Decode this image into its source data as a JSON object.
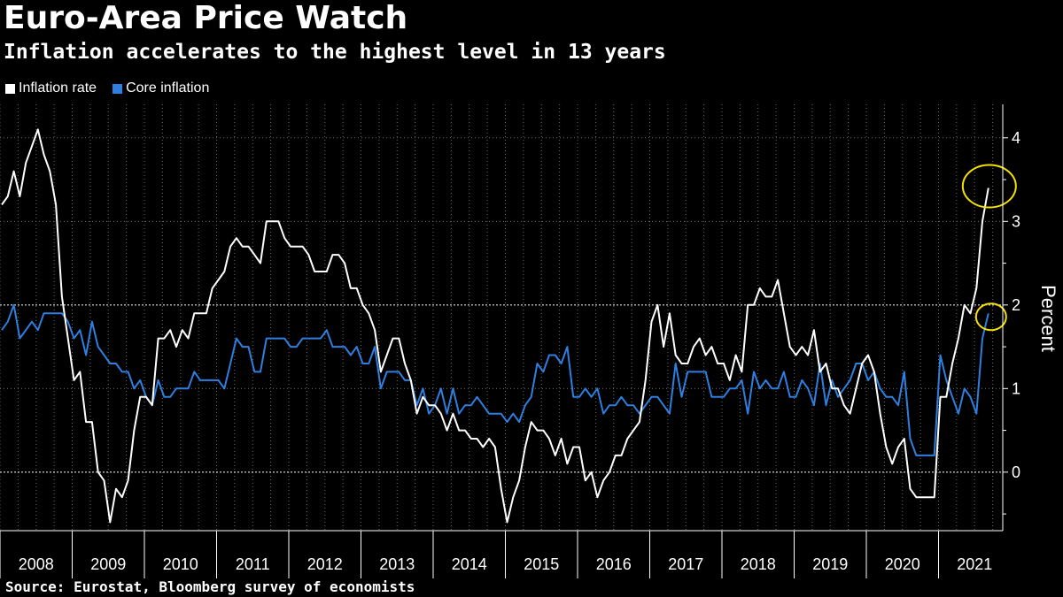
{
  "title": "Euro-Area Price Watch",
  "subtitle": "Inflation accelerates to the highest level in 13 years",
  "source": "Source: Eurostat, Bloomberg survey of economists",
  "colors": {
    "background": "#000000",
    "inflation": "#ffffff",
    "core": "#2f7fe0",
    "highlight": "#f5e100",
    "grid": "#6b6b6b"
  },
  "chart_data": {
    "type": "line",
    "title": "Euro-Area Price Watch",
    "subtitle": "Inflation accelerates to the highest level in 13 years",
    "xlabel": "",
    "ylabel": "Percent",
    "ylim": [
      -0.7,
      4.4
    ],
    "xlim": [
      "2008-01",
      "2021-11"
    ],
    "yticks": [
      0,
      1,
      2,
      3,
      4
    ],
    "year_labels": [
      "2008",
      "2009",
      "2010",
      "2011",
      "2012",
      "2013",
      "2014",
      "2015",
      "2016",
      "2017",
      "2018",
      "2019",
      "2020",
      "2021"
    ],
    "grid": true,
    "legend": "top-left",
    "start_month": "2008-01",
    "frequency": "monthly",
    "series": [
      {
        "name": "Inflation rate",
        "values": [
          3.2,
          3.3,
          3.6,
          3.3,
          3.7,
          3.9,
          4.1,
          3.8,
          3.6,
          3.2,
          2.1,
          1.6,
          1.1,
          1.2,
          0.6,
          0.6,
          0.0,
          -0.1,
          -0.6,
          -0.2,
          -0.3,
          -0.1,
          0.5,
          0.9,
          0.9,
          0.8,
          1.6,
          1.6,
          1.7,
          1.5,
          1.7,
          1.6,
          1.9,
          1.9,
          1.9,
          2.2,
          2.3,
          2.4,
          2.7,
          2.8,
          2.7,
          2.7,
          2.6,
          2.5,
          3.0,
          3.0,
          3.0,
          2.8,
          2.7,
          2.7,
          2.7,
          2.6,
          2.4,
          2.4,
          2.4,
          2.6,
          2.6,
          2.5,
          2.2,
          2.2,
          2.0,
          1.9,
          1.7,
          1.2,
          1.4,
          1.6,
          1.6,
          1.3,
          1.1,
          0.7,
          0.9,
          0.8,
          0.8,
          0.7,
          0.5,
          0.7,
          0.5,
          0.5,
          0.4,
          0.4,
          0.3,
          0.4,
          0.3,
          -0.2,
          -0.6,
          -0.3,
          -0.1,
          0.3,
          0.6,
          0.5,
          0.5,
          0.4,
          0.2,
          0.4,
          0.1,
          0.3,
          0.3,
          -0.1,
          0.0,
          -0.3,
          -0.1,
          0.0,
          0.2,
          0.2,
          0.4,
          0.5,
          0.6,
          1.1,
          1.8,
          2.0,
          1.5,
          1.9,
          1.4,
          1.3,
          1.3,
          1.5,
          1.6,
          1.4,
          1.5,
          1.3,
          1.3,
          1.1,
          1.4,
          1.2,
          2.0,
          2.0,
          2.2,
          2.1,
          2.1,
          2.3,
          1.9,
          1.5,
          1.4,
          1.5,
          1.4,
          1.7,
          1.2,
          1.3,
          1.0,
          1.0,
          0.8,
          0.7,
          1.0,
          1.3,
          1.4,
          1.2,
          0.7,
          0.3,
          0.1,
          0.3,
          0.4,
          -0.2,
          -0.3,
          -0.3,
          -0.3,
          -0.3,
          0.9,
          0.9,
          1.3,
          1.6,
          2.0,
          1.9,
          2.2,
          3.0,
          3.4
        ],
        "color": "#ffffff"
      },
      {
        "name": "Core inflation",
        "values": [
          1.7,
          1.8,
          2.0,
          1.6,
          1.7,
          1.8,
          1.7,
          1.9,
          1.9,
          1.9,
          1.9,
          1.8,
          1.6,
          1.7,
          1.4,
          1.8,
          1.5,
          1.4,
          1.3,
          1.3,
          1.2,
          1.2,
          1.0,
          1.1,
          0.9,
          0.8,
          1.1,
          0.9,
          0.9,
          1.0,
          1.0,
          1.0,
          1.2,
          1.1,
          1.1,
          1.1,
          1.1,
          1.0,
          1.3,
          1.6,
          1.5,
          1.5,
          1.2,
          1.2,
          1.6,
          1.6,
          1.6,
          1.6,
          1.5,
          1.5,
          1.6,
          1.6,
          1.6,
          1.6,
          1.7,
          1.5,
          1.5,
          1.5,
          1.4,
          1.5,
          1.3,
          1.3,
          1.5,
          1.0,
          1.2,
          1.2,
          1.2,
          1.1,
          1.1,
          0.8,
          1.0,
          0.7,
          0.8,
          1.0,
          0.7,
          1.0,
          0.7,
          0.8,
          0.8,
          0.9,
          0.8,
          0.7,
          0.7,
          0.7,
          0.6,
          0.7,
          0.6,
          0.8,
          0.9,
          1.3,
          1.2,
          1.4,
          1.4,
          1.3,
          1.5,
          0.9,
          0.9,
          1.0,
          0.9,
          1.0,
          0.7,
          0.8,
          0.8,
          0.9,
          0.8,
          0.8,
          0.7,
          0.8,
          0.9,
          0.9,
          0.8,
          0.7,
          1.3,
          0.9,
          1.2,
          1.2,
          1.2,
          1.2,
          0.9,
          0.9,
          0.9,
          1.0,
          1.0,
          1.1,
          0.7,
          1.2,
          1.0,
          1.1,
          1.0,
          1.0,
          1.2,
          0.9,
          0.9,
          1.1,
          1.0,
          0.8,
          1.3,
          0.8,
          1.1,
          0.9,
          1.0,
          1.1,
          1.3,
          1.3,
          1.1,
          1.2,
          1.0,
          0.9,
          0.9,
          0.8,
          1.2,
          0.4,
          0.2,
          0.2,
          0.2,
          0.2,
          1.4,
          1.1,
          0.9,
          0.7,
          1.0,
          0.9,
          0.7,
          1.6,
          1.9
        ],
        "color": "#2f7fe0"
      }
    ],
    "annotations": [
      {
        "type": "circle",
        "series": "Inflation rate",
        "month": "2021-11",
        "value": 3.4
      },
      {
        "type": "circle",
        "series": "Core inflation",
        "month": "2021-11",
        "value": 1.9
      }
    ]
  }
}
